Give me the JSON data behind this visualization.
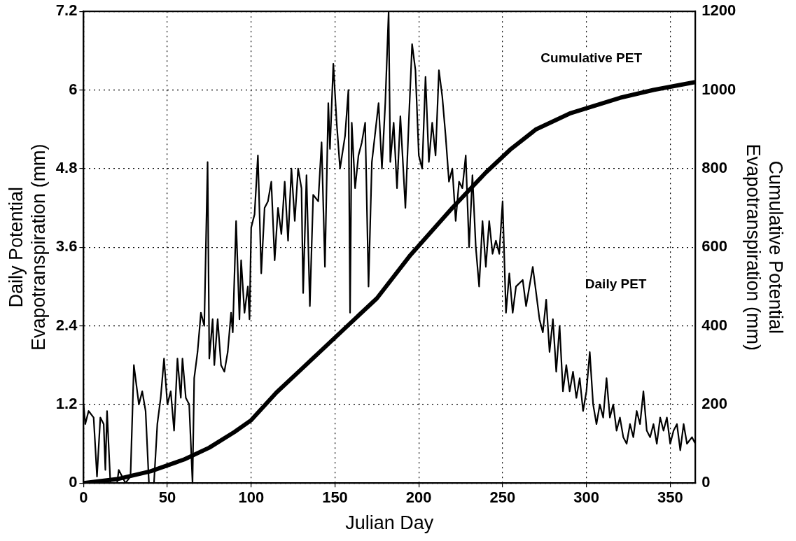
{
  "chart_data": {
    "type": "line",
    "xlabel": "Julian Day",
    "ylabel": "Daily Potential\nEvapotranspiration (mm)",
    "y2label": "Cumulative Potential\nEvapotranspiration (mm)",
    "xlim": [
      0,
      365
    ],
    "xticks": [
      0,
      50,
      100,
      150,
      200,
      250,
      300,
      350
    ],
    "ylim": [
      0,
      7.2
    ],
    "yticks": [
      0,
      1.2,
      2.4,
      3.6,
      4.8,
      6,
      7.2
    ],
    "y2lim": [
      0,
      1200
    ],
    "y2ticks": [
      0,
      200,
      400,
      600,
      800,
      1000,
      1200
    ],
    "grid": true,
    "legend": false,
    "marker": "none",
    "line_style": "solid",
    "annotations": [
      "Cumulative PET",
      "Daily PET"
    ],
    "series": [
      {
        "color": "#000000",
        "x": [
          0,
          1,
          3,
          6,
          8,
          10,
          12,
          13,
          14,
          16,
          20,
          21,
          25,
          28,
          30,
          33,
          35,
          37,
          39,
          42,
          44,
          46,
          48,
          50,
          52,
          54,
          56,
          58,
          59,
          61,
          63,
          65,
          66,
          68,
          70,
          72,
          74,
          75,
          77,
          78,
          80,
          82,
          84,
          86,
          88,
          89,
          91,
          93,
          94,
          96,
          98,
          99,
          100,
          102,
          104,
          106,
          108,
          110,
          112,
          114,
          116,
          118,
          120,
          122,
          124,
          126,
          128,
          130,
          131,
          133,
          135,
          137,
          140,
          142,
          144,
          146,
          147,
          149,
          151,
          153,
          156,
          158,
          159,
          160,
          162,
          164,
          166,
          168,
          170,
          172,
          176,
          178,
          180,
          182,
          183,
          185,
          187,
          189,
          192,
          194,
          196,
          198,
          200,
          202,
          204,
          206,
          208,
          210,
          212,
          214,
          216,
          218,
          220,
          222,
          224,
          226,
          228,
          230,
          232,
          234,
          236,
          238,
          240,
          242,
          244,
          246,
          248,
          250,
          252,
          254,
          256,
          258,
          262,
          264,
          268,
          270,
          272,
          274,
          276,
          278,
          280,
          282,
          284,
          286,
          288,
          290,
          292,
          294,
          296,
          298,
          300,
          302,
          304,
          306,
          308,
          310,
          312,
          314,
          316,
          318,
          320,
          322,
          324,
          326,
          328,
          330,
          332,
          334,
          336,
          338,
          340,
          342,
          344,
          346,
          348,
          350,
          352,
          354,
          356,
          358,
          360,
          363,
          365
        ],
        "values": [
          1.2,
          0.9,
          1.1,
          1.0,
          0.1,
          1.0,
          0.9,
          0.2,
          1.1,
          0.0,
          0.0,
          0.2,
          0.0,
          0.1,
          1.8,
          1.2,
          1.4,
          1.1,
          0.0,
          0.0,
          0.9,
          1.3,
          1.9,
          1.2,
          1.4,
          0.8,
          1.9,
          1.3,
          1.9,
          1.3,
          1.2,
          0.0,
          1.6,
          2.0,
          2.6,
          2.4,
          4.9,
          1.9,
          2.5,
          1.8,
          2.5,
          1.8,
          1.7,
          2.0,
          2.6,
          2.3,
          4.0,
          2.5,
          3.4,
          2.6,
          3.0,
          2.5,
          3.9,
          4.1,
          5.0,
          3.2,
          4.2,
          4.3,
          4.6,
          3.4,
          4.2,
          3.8,
          4.6,
          3.7,
          4.8,
          4.0,
          4.8,
          4.5,
          2.9,
          4.7,
          2.7,
          4.4,
          4.3,
          5.2,
          3.3,
          5.8,
          5.1,
          6.4,
          5.5,
          4.8,
          5.3,
          6.0,
          2.6,
          5.5,
          4.5,
          5.0,
          5.2,
          5.5,
          3.0,
          4.9,
          5.8,
          4.8,
          5.8,
          7.2,
          4.9,
          5.5,
          4.5,
          5.6,
          4.2,
          5.5,
          6.7,
          6.3,
          5.0,
          4.8,
          6.2,
          4.9,
          5.5,
          5.0,
          6.3,
          5.9,
          5.3,
          4.6,
          4.8,
          4.0,
          4.6,
          4.5,
          5.0,
          3.6,
          4.7,
          3.6,
          3.0,
          4.0,
          3.3,
          4.0,
          3.5,
          3.7,
          3.5,
          4.3,
          2.6,
          3.2,
          2.6,
          3.0,
          3.1,
          2.7,
          3.3,
          2.9,
          2.5,
          2.3,
          2.8,
          2.0,
          2.5,
          1.7,
          2.4,
          1.4,
          1.8,
          1.4,
          1.7,
          1.3,
          1.6,
          1.1,
          1.4,
          2.0,
          1.2,
          0.9,
          1.2,
          1.0,
          1.6,
          1.0,
          1.2,
          0.8,
          1.0,
          0.7,
          0.6,
          0.9,
          0.7,
          1.1,
          0.9,
          1.4,
          0.8,
          0.7,
          0.9,
          0.6,
          1.0,
          0.8,
          1.0,
          0.6,
          0.8,
          0.9,
          0.5,
          0.9,
          0.6,
          0.7,
          0.6
        ]
      },
      {
        "color": "#000000",
        "axis": "y2",
        "x": [
          0,
          20,
          40,
          60,
          75,
          90,
          100,
          115,
          130,
          140,
          160,
          175,
          195,
          220,
          240,
          255,
          270,
          290,
          320,
          340,
          365
        ],
        "values": [
          0,
          10,
          30,
          60,
          90,
          130,
          160,
          230,
          290,
          330,
          410,
          470,
          580,
          700,
          790,
          850,
          900,
          940,
          980,
          1000,
          1020
        ]
      }
    ]
  }
}
